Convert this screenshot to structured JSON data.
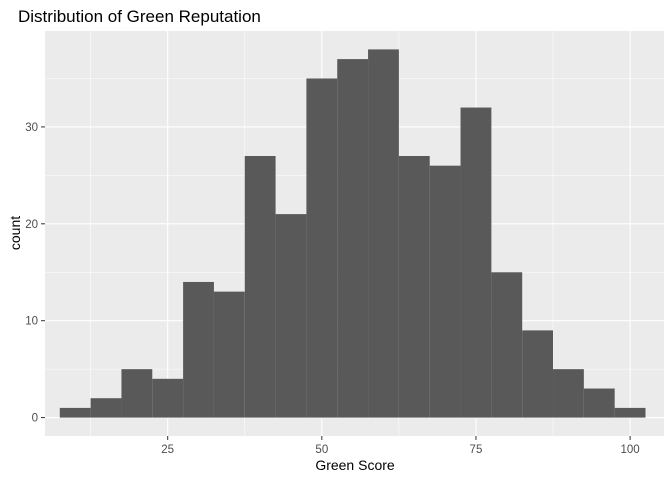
{
  "chart_data": {
    "type": "bar",
    "title": "Distribution of Green Reputation",
    "xlabel": "Green Score",
    "ylabel": "count",
    "xlim": [
      5.1,
      105.5
    ],
    "ylim": [
      -1.9,
      39.9
    ],
    "x_ticks": [
      25,
      50,
      75,
      100
    ],
    "y_ticks": [
      0,
      10,
      20,
      30
    ],
    "grid": true,
    "legend": "none",
    "bin_width": 5,
    "bins": [
      {
        "x0": 7.5,
        "x1": 12.5,
        "count": 1
      },
      {
        "x0": 12.5,
        "x1": 17.5,
        "count": 2
      },
      {
        "x0": 17.5,
        "x1": 22.5,
        "count": 5
      },
      {
        "x0": 22.5,
        "x1": 27.5,
        "count": 4
      },
      {
        "x0": 27.5,
        "x1": 32.5,
        "count": 14
      },
      {
        "x0": 32.5,
        "x1": 37.5,
        "count": 13
      },
      {
        "x0": 37.5,
        "x1": 42.5,
        "count": 27
      },
      {
        "x0": 42.5,
        "x1": 47.5,
        "count": 21
      },
      {
        "x0": 47.5,
        "x1": 52.5,
        "count": 35
      },
      {
        "x0": 52.5,
        "x1": 57.5,
        "count": 37
      },
      {
        "x0": 57.5,
        "x1": 62.5,
        "count": 38
      },
      {
        "x0": 62.5,
        "x1": 67.5,
        "count": 27
      },
      {
        "x0": 67.5,
        "x1": 72.5,
        "count": 26
      },
      {
        "x0": 72.5,
        "x1": 77.5,
        "count": 32
      },
      {
        "x0": 77.5,
        "x1": 82.5,
        "count": 15
      },
      {
        "x0": 82.5,
        "x1": 87.5,
        "count": 9
      },
      {
        "x0": 87.5,
        "x1": 92.5,
        "count": 5
      },
      {
        "x0": 92.5,
        "x1": 97.5,
        "count": 3
      },
      {
        "x0": 97.5,
        "x1": 102.5,
        "count": 1
      }
    ],
    "colors": {
      "panel_background": "#EBEBEB",
      "grid_major": "#FFFFFF",
      "bar_fill": "#595959",
      "text": "#000000",
      "tick_text": "#4D4D4D",
      "tick_mark": "#333333"
    }
  }
}
